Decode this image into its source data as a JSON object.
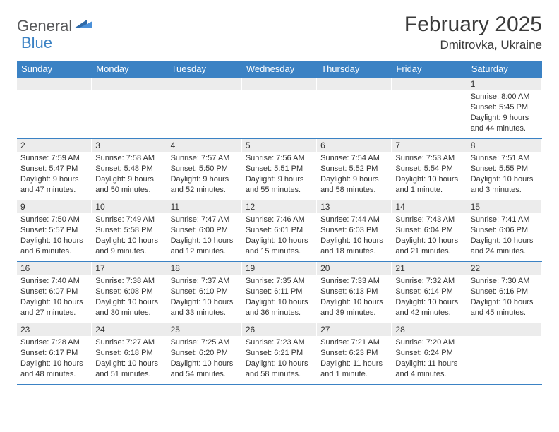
{
  "brand": {
    "part1": "General",
    "part2": "Blue"
  },
  "title": "February 2025",
  "location": "Dmitrovka, Ukraine",
  "accent_color": "#3b82c4",
  "text_color": "#333333",
  "header_bg": "#3b82c4",
  "daynum_bg": "#ececec",
  "background_color": "#ffffff",
  "font_family": "Arial",
  "title_fontsize": 30,
  "location_fontsize": 17,
  "dayheader_fontsize": 13,
  "daynum_fontsize": 12,
  "body_fontsize": 11,
  "day_names": [
    "Sunday",
    "Monday",
    "Tuesday",
    "Wednesday",
    "Thursday",
    "Friday",
    "Saturday"
  ],
  "weeks": [
    [
      null,
      null,
      null,
      null,
      null,
      null,
      {
        "n": "1",
        "sunrise": "Sunrise: 8:00 AM",
        "sunset": "Sunset: 5:45 PM",
        "day1": "Daylight: 9 hours",
        "day2": "and 44 minutes."
      }
    ],
    [
      {
        "n": "2",
        "sunrise": "Sunrise: 7:59 AM",
        "sunset": "Sunset: 5:47 PM",
        "day1": "Daylight: 9 hours",
        "day2": "and 47 minutes."
      },
      {
        "n": "3",
        "sunrise": "Sunrise: 7:58 AM",
        "sunset": "Sunset: 5:48 PM",
        "day1": "Daylight: 9 hours",
        "day2": "and 50 minutes."
      },
      {
        "n": "4",
        "sunrise": "Sunrise: 7:57 AM",
        "sunset": "Sunset: 5:50 PM",
        "day1": "Daylight: 9 hours",
        "day2": "and 52 minutes."
      },
      {
        "n": "5",
        "sunrise": "Sunrise: 7:56 AM",
        "sunset": "Sunset: 5:51 PM",
        "day1": "Daylight: 9 hours",
        "day2": "and 55 minutes."
      },
      {
        "n": "6",
        "sunrise": "Sunrise: 7:54 AM",
        "sunset": "Sunset: 5:52 PM",
        "day1": "Daylight: 9 hours",
        "day2": "and 58 minutes."
      },
      {
        "n": "7",
        "sunrise": "Sunrise: 7:53 AM",
        "sunset": "Sunset: 5:54 PM",
        "day1": "Daylight: 10 hours",
        "day2": "and 1 minute."
      },
      {
        "n": "8",
        "sunrise": "Sunrise: 7:51 AM",
        "sunset": "Sunset: 5:55 PM",
        "day1": "Daylight: 10 hours",
        "day2": "and 3 minutes."
      }
    ],
    [
      {
        "n": "9",
        "sunrise": "Sunrise: 7:50 AM",
        "sunset": "Sunset: 5:57 PM",
        "day1": "Daylight: 10 hours",
        "day2": "and 6 minutes."
      },
      {
        "n": "10",
        "sunrise": "Sunrise: 7:49 AM",
        "sunset": "Sunset: 5:58 PM",
        "day1": "Daylight: 10 hours",
        "day2": "and 9 minutes."
      },
      {
        "n": "11",
        "sunrise": "Sunrise: 7:47 AM",
        "sunset": "Sunset: 6:00 PM",
        "day1": "Daylight: 10 hours",
        "day2": "and 12 minutes."
      },
      {
        "n": "12",
        "sunrise": "Sunrise: 7:46 AM",
        "sunset": "Sunset: 6:01 PM",
        "day1": "Daylight: 10 hours",
        "day2": "and 15 minutes."
      },
      {
        "n": "13",
        "sunrise": "Sunrise: 7:44 AM",
        "sunset": "Sunset: 6:03 PM",
        "day1": "Daylight: 10 hours",
        "day2": "and 18 minutes."
      },
      {
        "n": "14",
        "sunrise": "Sunrise: 7:43 AM",
        "sunset": "Sunset: 6:04 PM",
        "day1": "Daylight: 10 hours",
        "day2": "and 21 minutes."
      },
      {
        "n": "15",
        "sunrise": "Sunrise: 7:41 AM",
        "sunset": "Sunset: 6:06 PM",
        "day1": "Daylight: 10 hours",
        "day2": "and 24 minutes."
      }
    ],
    [
      {
        "n": "16",
        "sunrise": "Sunrise: 7:40 AM",
        "sunset": "Sunset: 6:07 PM",
        "day1": "Daylight: 10 hours",
        "day2": "and 27 minutes."
      },
      {
        "n": "17",
        "sunrise": "Sunrise: 7:38 AM",
        "sunset": "Sunset: 6:08 PM",
        "day1": "Daylight: 10 hours",
        "day2": "and 30 minutes."
      },
      {
        "n": "18",
        "sunrise": "Sunrise: 7:37 AM",
        "sunset": "Sunset: 6:10 PM",
        "day1": "Daylight: 10 hours",
        "day2": "and 33 minutes."
      },
      {
        "n": "19",
        "sunrise": "Sunrise: 7:35 AM",
        "sunset": "Sunset: 6:11 PM",
        "day1": "Daylight: 10 hours",
        "day2": "and 36 minutes."
      },
      {
        "n": "20",
        "sunrise": "Sunrise: 7:33 AM",
        "sunset": "Sunset: 6:13 PM",
        "day1": "Daylight: 10 hours",
        "day2": "and 39 minutes."
      },
      {
        "n": "21",
        "sunrise": "Sunrise: 7:32 AM",
        "sunset": "Sunset: 6:14 PM",
        "day1": "Daylight: 10 hours",
        "day2": "and 42 minutes."
      },
      {
        "n": "22",
        "sunrise": "Sunrise: 7:30 AM",
        "sunset": "Sunset: 6:16 PM",
        "day1": "Daylight: 10 hours",
        "day2": "and 45 minutes."
      }
    ],
    [
      {
        "n": "23",
        "sunrise": "Sunrise: 7:28 AM",
        "sunset": "Sunset: 6:17 PM",
        "day1": "Daylight: 10 hours",
        "day2": "and 48 minutes."
      },
      {
        "n": "24",
        "sunrise": "Sunrise: 7:27 AM",
        "sunset": "Sunset: 6:18 PM",
        "day1": "Daylight: 10 hours",
        "day2": "and 51 minutes."
      },
      {
        "n": "25",
        "sunrise": "Sunrise: 7:25 AM",
        "sunset": "Sunset: 6:20 PM",
        "day1": "Daylight: 10 hours",
        "day2": "and 54 minutes."
      },
      {
        "n": "26",
        "sunrise": "Sunrise: 7:23 AM",
        "sunset": "Sunset: 6:21 PM",
        "day1": "Daylight: 10 hours",
        "day2": "and 58 minutes."
      },
      {
        "n": "27",
        "sunrise": "Sunrise: 7:21 AM",
        "sunset": "Sunset: 6:23 PM",
        "day1": "Daylight: 11 hours",
        "day2": "and 1 minute."
      },
      {
        "n": "28",
        "sunrise": "Sunrise: 7:20 AM",
        "sunset": "Sunset: 6:24 PM",
        "day1": "Daylight: 11 hours",
        "day2": "and 4 minutes."
      },
      null
    ]
  ]
}
